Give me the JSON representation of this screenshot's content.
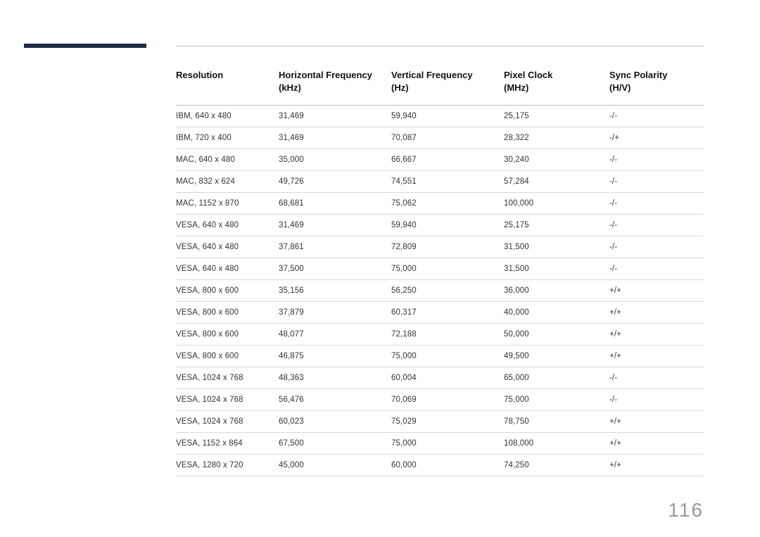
{
  "pageNumber": "116",
  "table": {
    "headers": {
      "col1": {
        "l1": "Resolution"
      },
      "col2": {
        "l1": "Horizontal Frequency",
        "l2": "(kHz)"
      },
      "col3": {
        "l1": "Vertical Frequency",
        "l2": "(Hz)"
      },
      "col4": {
        "l1": "Pixel Clock",
        "l2": "(MHz)"
      },
      "col5": {
        "l1": "Sync Polarity",
        "l2": "(H/V)"
      }
    },
    "rows": [
      {
        "c1": "IBM, 640 x 480",
        "c2": "31,469",
        "c3": "59,940",
        "c4": "25,175",
        "c5": "-/-"
      },
      {
        "c1": "IBM, 720 x 400",
        "c2": "31,469",
        "c3": "70,087",
        "c4": "28,322",
        "c5": "-/+"
      },
      {
        "c1": "MAC, 640 x 480",
        "c2": "35,000",
        "c3": "66,667",
        "c4": "30,240",
        "c5": "-/-"
      },
      {
        "c1": "MAC, 832 x 624",
        "c2": "49,726",
        "c3": "74,551",
        "c4": "57,284",
        "c5": "-/-"
      },
      {
        "c1": "MAC, 1152 x 870",
        "c2": "68,681",
        "c3": "75,062",
        "c4": "100,000",
        "c5": "-/-"
      },
      {
        "c1": "VESA, 640 x 480",
        "c2": "31,469",
        "c3": "59,940",
        "c4": "25,175",
        "c5": "-/-"
      },
      {
        "c1": "VESA, 640 x 480",
        "c2": "37,861",
        "c3": "72,809",
        "c4": "31,500",
        "c5": "-/-"
      },
      {
        "c1": "VESA, 640 x 480",
        "c2": "37,500",
        "c3": "75,000",
        "c4": "31,500",
        "c5": "-/-"
      },
      {
        "c1": "VESA, 800 x 600",
        "c2": "35,156",
        "c3": "56,250",
        "c4": "36,000",
        "c5": "+/+"
      },
      {
        "c1": "VESA, 800 x 600",
        "c2": "37,879",
        "c3": "60,317",
        "c4": "40,000",
        "c5": "+/+"
      },
      {
        "c1": "VESA, 800 x 600",
        "c2": "48,077",
        "c3": "72,188",
        "c4": "50,000",
        "c5": "+/+"
      },
      {
        "c1": "VESA, 800 x 600",
        "c2": "46,875",
        "c3": "75,000",
        "c4": "49,500",
        "c5": "+/+"
      },
      {
        "c1": "VESA, 1024 x 768",
        "c2": "48,363",
        "c3": "60,004",
        "c4": "65,000",
        "c5": "-/-"
      },
      {
        "c1": "VESA, 1024 x 768",
        "c2": "56,476",
        "c3": "70,069",
        "c4": "75,000",
        "c5": "-/-"
      },
      {
        "c1": "VESA, 1024 x 768",
        "c2": "60,023",
        "c3": "75,029",
        "c4": "78,750",
        "c5": "+/+"
      },
      {
        "c1": "VESA, 1152 x 864",
        "c2": "67,500",
        "c3": "75,000",
        "c4": "108,000",
        "c5": "+/+"
      },
      {
        "c1": "VESA, 1280 x 720",
        "c2": "45,000",
        "c3": "60,000",
        "c4": "74,250",
        "c5": "+/+"
      }
    ]
  },
  "colors": {
    "accent": "#1f2a4a",
    "ruleLight": "#d9d9d9",
    "ruleMid": "#bfbfbf",
    "pageNum": "#9a9a9a"
  }
}
